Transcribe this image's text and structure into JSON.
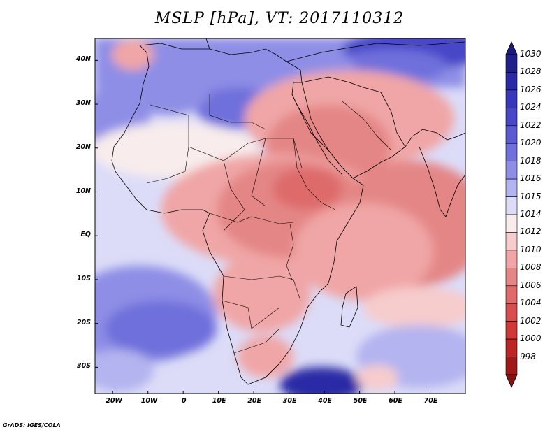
{
  "title": "MSLP [hPa], VT: 2017110312",
  "credit": "GrADS: IGES/COLA",
  "map": {
    "lon_range": [
      -25,
      80
    ],
    "lat_range": [
      -36,
      45
    ],
    "lon_ticks": [
      {
        "lon": -20,
        "label": "20W"
      },
      {
        "lon": -10,
        "label": "10W"
      },
      {
        "lon": 0,
        "label": "0"
      },
      {
        "lon": 10,
        "label": "10E"
      },
      {
        "lon": 20,
        "label": "20E"
      },
      {
        "lon": 30,
        "label": "30E"
      },
      {
        "lon": 40,
        "label": "40E"
      },
      {
        "lon": 50,
        "label": "50E"
      },
      {
        "lon": 60,
        "label": "60E"
      },
      {
        "lon": 70,
        "label": "70E"
      }
    ],
    "lat_ticks": [
      {
        "lat": 40,
        "label": "40N"
      },
      {
        "lat": 30,
        "label": "30N"
      },
      {
        "lat": 20,
        "label": "20N"
      },
      {
        "lat": 10,
        "label": "10N"
      },
      {
        "lat": 0,
        "label": "EQ"
      },
      {
        "lat": -10,
        "label": "10S"
      },
      {
        "lat": -20,
        "label": "20S"
      },
      {
        "lat": -30,
        "label": "30S"
      }
    ]
  },
  "colorbar": {
    "levels": [
      {
        "label": "1030",
        "color": "#20208a"
      },
      {
        "label": "1028",
        "color": "#2a2aa6"
      },
      {
        "label": "1026",
        "color": "#3838bb"
      },
      {
        "label": "1024",
        "color": "#4747c8"
      },
      {
        "label": "1022",
        "color": "#5a5ad2"
      },
      {
        "label": "1020",
        "color": "#7070dc"
      },
      {
        "label": "1018",
        "color": "#8e8ee6"
      },
      {
        "label": "1016",
        "color": "#b4b4f0"
      },
      {
        "label": "1015",
        "color": "#dcdcf8"
      },
      {
        "label": "1014",
        "color": "#f8ecec"
      },
      {
        "label": "1012",
        "color": "#f6cccc"
      },
      {
        "label": "1010",
        "color": "#f0a6a6"
      },
      {
        "label": "1008",
        "color": "#e48686"
      },
      {
        "label": "1006",
        "color": "#de6a6a"
      },
      {
        "label": "1004",
        "color": "#d84e4e"
      },
      {
        "label": "1002",
        "color": "#d23838"
      },
      {
        "label": "1000",
        "color": "#bd2424"
      },
      {
        "label": "998",
        "color": "#a01818"
      }
    ],
    "top_color": "#1a1a80",
    "bottom_color": "#8a1010"
  }
}
